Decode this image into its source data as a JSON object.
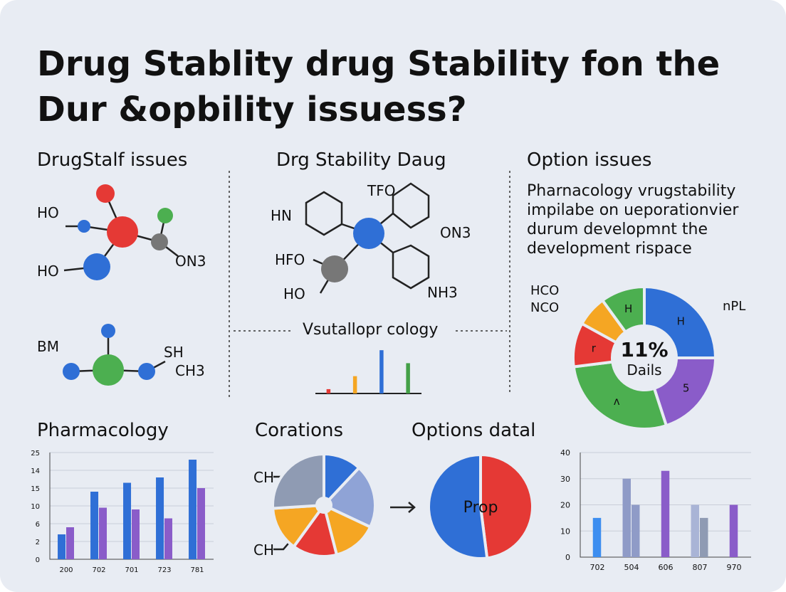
{
  "header": {
    "title_lines": [
      "Drug Stablity drug Stability fon the",
      "Dur &opbility issuess?"
    ]
  },
  "sections": [
    {
      "heading": "DrugStalf issues",
      "labels": [
        "HO",
        "HO",
        "ON3",
        "BM",
        "SH",
        "CH3"
      ]
    },
    {
      "heading": "Drg Stability Daug",
      "labels": [
        "HN",
        "TFO",
        "ON3",
        "HFO",
        "HO",
        "NH3"
      ]
    },
    {
      "heading": "Option issues",
      "lines": [
        "Pharnacology vrugstability",
        "impilabe on ueporationvier",
        "durum developmnt the",
        "development rispace"
      ]
    },
    {
      "heading": "Pharmacology"
    },
    {
      "heading": "Corations",
      "labels": [
        "CH",
        "CH"
      ]
    },
    {
      "heading": "Options datal"
    }
  ],
  "chart_data": [
    {
      "type": "bar",
      "title": "Vsutallopr cology",
      "values": [
        1,
        4,
        10,
        7
      ],
      "colors": [
        "#e53935",
        "#f5a623",
        "#2f6fd6",
        "#43a047"
      ],
      "ylim": [
        0,
        12
      ]
    },
    {
      "type": "pie",
      "labels": [
        "H",
        "5",
        "ʌ",
        "r",
        null,
        "H"
      ],
      "values": [
        25,
        20,
        28,
        10,
        7,
        10
      ],
      "colors": [
        "#2f6fd6",
        "#8a5cc9",
        "#4caf50",
        "#e53935",
        "#f5a623",
        "#4caf50"
      ],
      "center_label": "11%",
      "center_sublabel": "Dails",
      "annotations": [
        "HCO",
        "NCO",
        "nPL"
      ]
    },
    {
      "type": "bar",
      "categories": [
        "200",
        "702",
        "701",
        "723",
        "781"
      ],
      "series": [
        {
          "color": "#2f6fd6",
          "values": [
            1.4,
            3.8,
            4.3,
            4.6,
            5.6
          ]
        },
        {
          "color": "#8a5cc9",
          "values": [
            1.8,
            2.9,
            2.8,
            2.3,
            4.0
          ]
        }
      ],
      "ylim": [
        0,
        6
      ],
      "yticks": [
        {
          "value": 0,
          "label": "0"
        },
        {
          "value": 1,
          "label": "2"
        },
        {
          "value": 2,
          "label": "6"
        },
        {
          "value": 3,
          "label": "10"
        },
        {
          "value": 4,
          "label": "15"
        },
        {
          "value": 5,
          "label": "14"
        },
        {
          "value": 6,
          "label": "25"
        }
      ],
      "grid": true
    },
    {
      "type": "pie",
      "values": [
        12,
        20,
        14,
        14,
        14,
        26
      ],
      "colors": [
        "#2f6fd6",
        "#8fa3d6",
        "#f5a623",
        "#e53935",
        "#f5a623",
        "#8f9bb3"
      ]
    },
    {
      "type": "pie",
      "values": [
        48,
        52
      ],
      "colors": [
        "#e53935",
        "#2f6fd6"
      ],
      "center_label": "Prop"
    },
    {
      "type": "bar",
      "categories": [
        "702",
        "504",
        "606",
        "807",
        "970"
      ],
      "series": [
        {
          "colors": [
            "#3d8ef0",
            "#8f9bc7",
            "#8a5cc9",
            "#a9b4d6",
            "#8a5cc9"
          ],
          "values": [
            15,
            30,
            33,
            20,
            20
          ]
        },
        {
          "colors": [
            null,
            "#8f9bc7",
            null,
            "#8f9bb3",
            null
          ],
          "values": [
            null,
            20,
            null,
            15,
            null
          ]
        }
      ],
      "ylim": [
        0,
        40
      ],
      "yticks": [
        0,
        10,
        20,
        30,
        40
      ],
      "grid": true
    }
  ]
}
